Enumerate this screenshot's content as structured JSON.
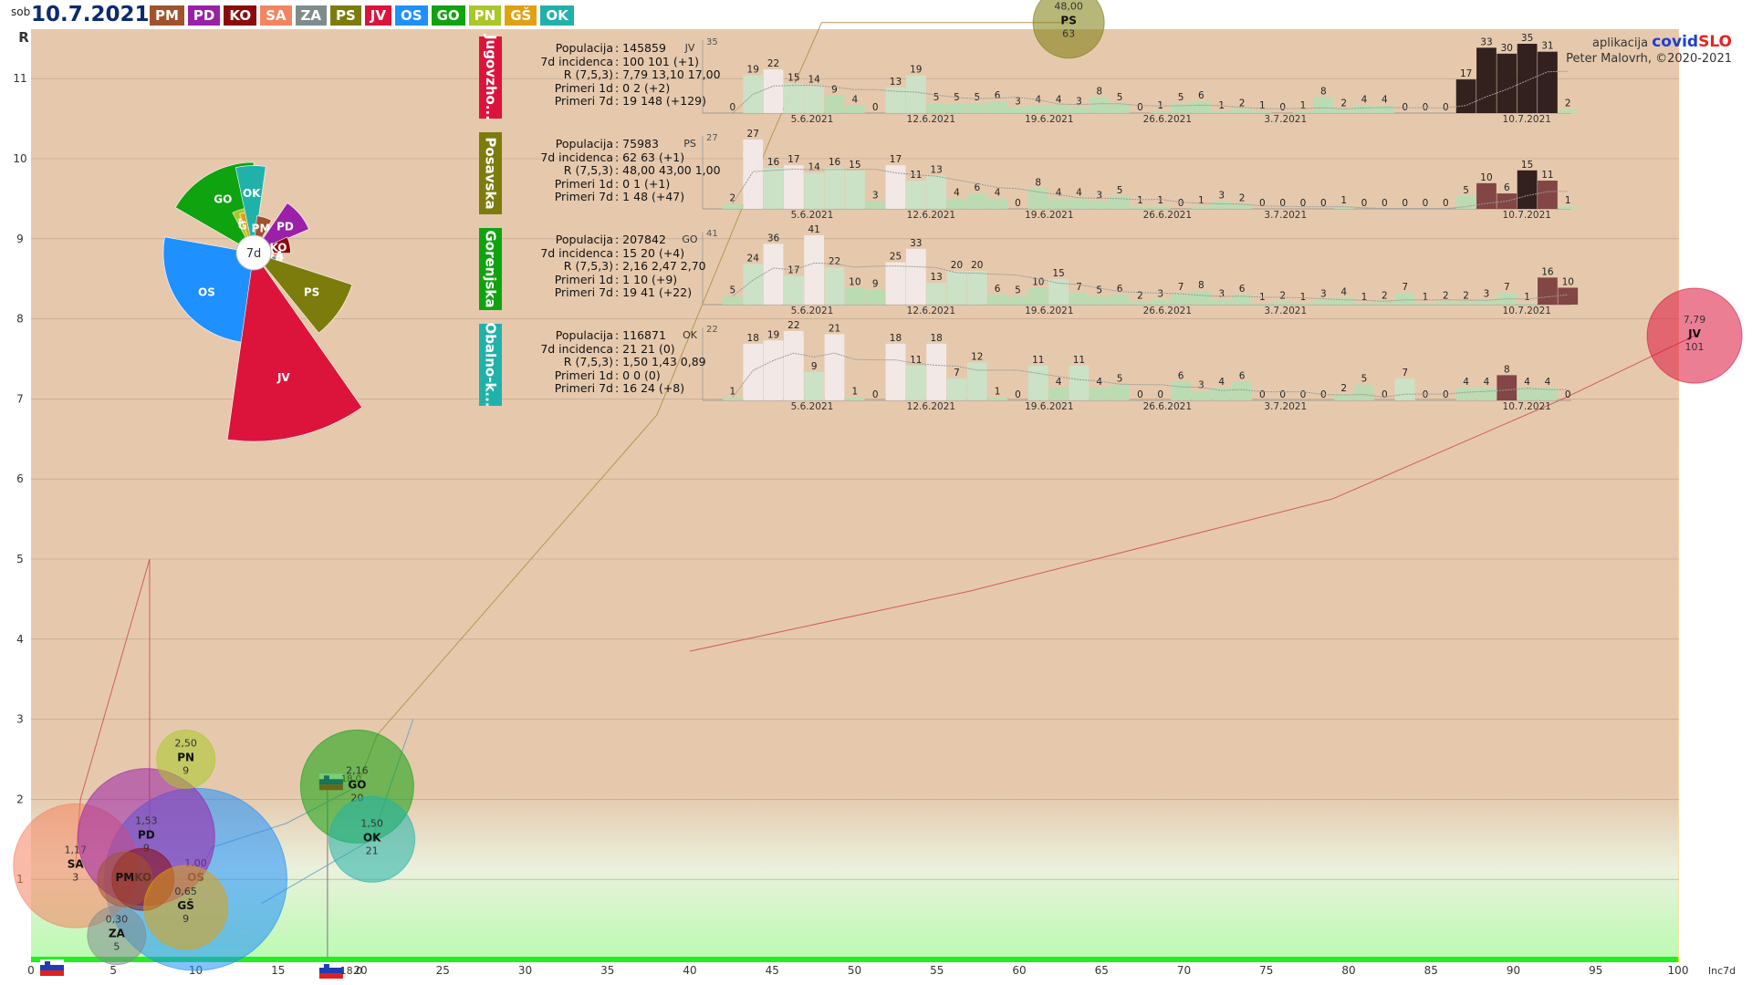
{
  "header": {
    "day": "sob",
    "date": "10.7.2021",
    "regions": [
      {
        "code": "PM",
        "color": "#a0522d"
      },
      {
        "code": "PD",
        "color": "#9b1fa8"
      },
      {
        "code": "KO",
        "color": "#8b0b0b"
      },
      {
        "code": "SA",
        "color": "#f4845f"
      },
      {
        "code": "ZA",
        "color": "#7f8c8d"
      },
      {
        "code": "PS",
        "color": "#7c7c0c"
      },
      {
        "code": "JV",
        "color": "#dc143c"
      },
      {
        "code": "OS",
        "color": "#1e90ff"
      },
      {
        "code": "GO",
        "color": "#0fa30f"
      },
      {
        "code": "PN",
        "color": "#a8c828"
      },
      {
        "code": "GŠ",
        "color": "#e0a010"
      },
      {
        "code": "OK",
        "color": "#20b2aa"
      }
    ]
  },
  "credit": {
    "prefix": "aplikacija",
    "brand1": "covid",
    "brand2": "SLO",
    "author": "Peter Malovrh, ©2020-2021"
  },
  "chart_data": [
    {
      "type": "scatter",
      "xlabel": "Inc7d",
      "ylabel": "R",
      "xlim": [
        0,
        103
      ],
      "ylim": [
        0,
        11.9
      ],
      "xticks": [
        0,
        5,
        10,
        15,
        20,
        25,
        30,
        35,
        40,
        45,
        50,
        55,
        60,
        65,
        70,
        75,
        80,
        85,
        90,
        95,
        100
      ],
      "yticks": [
        1,
        2,
        3,
        4,
        5,
        6,
        7,
        8,
        9,
        10,
        11
      ],
      "slovenia": {
        "x": 18.0,
        "label": "18.0",
        "r_label": "18.0"
      },
      "points": [
        {
          "code": "SA",
          "r": 1.17,
          "inc": 3,
          "r_label": "1,17",
          "inc_label": "3",
          "x": 2.7,
          "y": 1.17,
          "size": 3,
          "color": "#f4845f"
        },
        {
          "code": "PD",
          "r": 1.53,
          "inc": 9,
          "r_label": "1,53",
          "inc_label": "9",
          "x": 7.0,
          "y": 1.53,
          "size": 4,
          "color": "#9b1fa8"
        },
        {
          "code": "PN",
          "r": 2.5,
          "inc": 9,
          "r_label": "2,50",
          "inc_label": "9",
          "x": 9.4,
          "y": 2.5,
          "size": 1.5,
          "color": "#a8c828"
        },
        {
          "code": "KO",
          "r": 1.0,
          "inc": "",
          "r_label": "",
          "inc_label": "",
          "x": 6.8,
          "y": 1.0,
          "size": 1.5,
          "color": "#8b0b0b"
        },
        {
          "code": "PM",
          "r": 1.0,
          "inc": "",
          "r_label": "",
          "inc_label": "",
          "x": 5.7,
          "y": 1.0,
          "size": 1.5,
          "color": "#a0522d"
        },
        {
          "code": "OS",
          "r": 1.0,
          "inc": "",
          "r_label": "1,00",
          "inc_label": "",
          "x": 10.0,
          "y": 1.0,
          "size": 7,
          "color": "#1e90ff"
        },
        {
          "code": "GŠ",
          "r": 0.65,
          "inc": 9,
          "r_label": "0,65",
          "inc_label": "9",
          "x": 9.4,
          "y": 0.65,
          "size": 2,
          "color": "#e0a010"
        },
        {
          "code": "ZA",
          "r": 0.3,
          "inc": 5,
          "r_label": "0,30",
          "inc_label": "5",
          "x": 5.2,
          "y": 0.3,
          "size": 1.6,
          "color": "#7f8c8d"
        },
        {
          "code": "GO",
          "r": 2.16,
          "inc": 20,
          "r_label": "2,16",
          "inc_label": "20",
          "x": 19.8,
          "y": 2.16,
          "size": 3.5,
          "color": "#0fa30f"
        },
        {
          "code": "OK",
          "r": 1.5,
          "inc": 21,
          "r_label": "1,50",
          "inc_label": "21",
          "x": 20.7,
          "y": 1.5,
          "size": 2.6,
          "color": "#20b2aa"
        },
        {
          "code": "JV",
          "r": 7.79,
          "inc": 101,
          "r_label": "7,79",
          "inc_label": "101",
          "x": 101,
          "y": 7.79,
          "size": 2.8,
          "color": "#dc143c"
        },
        {
          "code": "PS",
          "r": 48.0,
          "inc": 63,
          "r_label": "48,00",
          "inc_label": "63",
          "x": 63,
          "y": 11.7,
          "size": 2.2,
          "color": "#7c7c0c"
        }
      ]
    },
    {
      "type": "pie",
      "title": "7d",
      "center_label": "7d",
      "slices": [
        {
          "code": "OS",
          "value": 1.1,
          "color": "#1e90ff"
        },
        {
          "code": "GO",
          "value": 1.1,
          "color": "#0fa30f"
        },
        {
          "code": "PN",
          "value": 0.55,
          "color": "#a8c828"
        },
        {
          "code": "GŠ",
          "value": 0.5,
          "color": "#e0a010"
        },
        {
          "code": "OK",
          "value": 1.06,
          "color": "#20b2aa"
        },
        {
          "code": "PM",
          "value": 0.45,
          "color": "#a0522d"
        },
        {
          "code": "PD",
          "value": 0.73,
          "color": "#9b1fa8"
        },
        {
          "code": "KO",
          "value": 0.45,
          "color": "#8b0b0b"
        },
        {
          "code": "SA",
          "value": 0.35,
          "color": "#f4845f"
        },
        {
          "code": "ZA",
          "value": 0.3,
          "color": "#7f8c8d"
        },
        {
          "code": "PS",
          "value": 1.26,
          "color": "#7c7c0c"
        },
        {
          "code": "JV",
          "value": 2.3,
          "color": "#dc143c"
        }
      ]
    },
    {
      "type": "bar",
      "region": "Jugovzho...",
      "code": "JV",
      "color": "#dc143c",
      "ymax": "35",
      "stats": [
        [
          "Populacija",
          "145859"
        ],
        [
          "7d incidenca",
          "100 101 (+1)"
        ],
        [
          "R (7,5,3)",
          "7,79 13,10 17,00"
        ],
        [
          "Primeri 1d",
          "0 2 (+2)"
        ],
        [
          "Primeri 7d",
          "19 148 (+129)"
        ]
      ],
      "xtick_labels": [
        "5.6.2021",
        "12.6.2021",
        "19.6.2021",
        "26.6.2021",
        "3.7.2021",
        "10.7.2021"
      ],
      "values": [
        0,
        19,
        22,
        15,
        14,
        9,
        4,
        0,
        13,
        19,
        5,
        5,
        5,
        6,
        3,
        4,
        4,
        3,
        8,
        5,
        0,
        1,
        5,
        6,
        1,
        2,
        1,
        0,
        1,
        8,
        2,
        4,
        4,
        0,
        0,
        0,
        17,
        33,
        30,
        35,
        31,
        2
      ]
    },
    {
      "type": "bar",
      "region": "Posavska",
      "code": "PS",
      "color": "#7c7c0c",
      "ymax": "27",
      "stats": [
        [
          "Populacija",
          "75983"
        ],
        [
          "7d incidenca",
          "62 63 (+1)"
        ],
        [
          "R (7,5,3)",
          "48,00 43,00 1,00"
        ],
        [
          "Primeri 1d",
          "0 1 (+1)"
        ],
        [
          "Primeri 7d",
          "1 48 (+47)"
        ]
      ],
      "xtick_labels": [
        "5.6.2021",
        "12.6.2021",
        "19.6.2021",
        "26.6.2021",
        "3.7.2021",
        "10.7.2021"
      ],
      "values": [
        2,
        27,
        16,
        17,
        14,
        16,
        15,
        3,
        17,
        11,
        13,
        4,
        6,
        4,
        0,
        8,
        4,
        4,
        3,
        5,
        1,
        1,
        0,
        1,
        3,
        2,
        0,
        0,
        0,
        0,
        1,
        0,
        0,
        0,
        0,
        0,
        5,
        10,
        6,
        15,
        11,
        1
      ]
    },
    {
      "type": "bar",
      "region": "Gorenjska",
      "code": "GO",
      "color": "#0fa30f",
      "ymax": "41",
      "stats": [
        [
          "Populacija",
          "207842"
        ],
        [
          "7d incidenca",
          "15 20 (+4)"
        ],
        [
          "R (7,5,3)",
          "2,16 2,47 2,70"
        ],
        [
          "Primeri 1d",
          "1 10 (+9)"
        ],
        [
          "Primeri 7d",
          "19 41 (+22)"
        ]
      ],
      "xtick_labels": [
        "5.6.2021",
        "12.6.2021",
        "19.6.2021",
        "26.6.2021",
        "3.7.2021",
        "10.7.2021"
      ],
      "values": [
        5,
        24,
        36,
        17,
        41,
        22,
        10,
        9,
        25,
        33,
        13,
        20,
        20,
        6,
        5,
        10,
        15,
        7,
        5,
        6,
        2,
        3,
        7,
        8,
        3,
        6,
        1,
        2,
        1,
        3,
        4,
        1,
        2,
        7,
        1,
        2,
        2,
        3,
        7,
        1,
        16,
        10
      ]
    },
    {
      "type": "bar",
      "region": "Obalno-k...",
      "code": "OK",
      "color": "#20b2aa",
      "ymax": "22",
      "stats": [
        [
          "Populacija",
          "116871"
        ],
        [
          "7d incidenca",
          "21 21 (0)"
        ],
        [
          "R (7,5,3)",
          "1,50 1,43 0,89"
        ],
        [
          "Primeri 1d",
          "0 0 (0)"
        ],
        [
          "Primeri 7d",
          "16 24 (+8)"
        ]
      ],
      "xtick_labels": [
        "5.6.2021",
        "12.6.2021",
        "19.6.2021",
        "26.6.2021",
        "3.7.2021",
        "10.7.2021"
      ],
      "values": [
        1,
        18,
        19,
        22,
        9,
        21,
        1,
        0,
        18,
        11,
        18,
        7,
        12,
        1,
        0,
        11,
        4,
        11,
        4,
        5,
        0,
        0,
        6,
        3,
        4,
        6,
        0,
        0,
        0,
        0,
        2,
        5,
        0,
        7,
        0,
        0,
        4,
        4,
        8,
        4,
        4,
        0
      ]
    }
  ]
}
